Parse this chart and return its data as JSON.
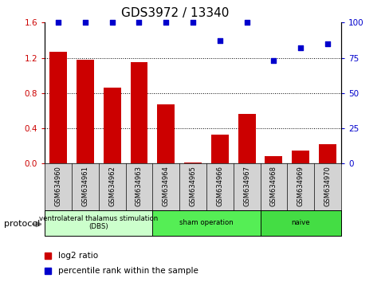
{
  "title": "GDS3972 / 13340",
  "samples": [
    "GSM634960",
    "GSM634961",
    "GSM634962",
    "GSM634963",
    "GSM634964",
    "GSM634965",
    "GSM634966",
    "GSM634967",
    "GSM634968",
    "GSM634969",
    "GSM634970"
  ],
  "log2_ratio": [
    1.27,
    1.18,
    0.86,
    1.15,
    0.67,
    0.01,
    0.33,
    0.56,
    0.08,
    0.15,
    0.22
  ],
  "percentile_rank": [
    100,
    100,
    100,
    100,
    100,
    100,
    87,
    100,
    73,
    82,
    85
  ],
  "bar_color": "#cc0000",
  "dot_color": "#0000cc",
  "ylim_left": [
    0,
    1.6
  ],
  "ylim_right": [
    0,
    100
  ],
  "yticks_left": [
    0,
    0.4,
    0.8,
    1.2,
    1.6
  ],
  "yticks_right": [
    0,
    25,
    50,
    75,
    100
  ],
  "groups": [
    {
      "label": "ventrolateral thalamus stimulation\n(DBS)",
      "start": 0,
      "end": 4,
      "color": "#ccffcc"
    },
    {
      "label": "sham operation",
      "start": 4,
      "end": 8,
      "color": "#55ee55"
    },
    {
      "label": "naive",
      "start": 8,
      "end": 11,
      "color": "#44dd44"
    }
  ],
  "protocol_label": "protocol",
  "legend_bar_label": "log2 ratio",
  "legend_dot_label": "percentile rank within the sample",
  "tick_label_color_left": "#cc0000",
  "tick_label_color_right": "#0000cc",
  "sample_bg_color": "#d3d3d3",
  "title_fontsize": 11
}
